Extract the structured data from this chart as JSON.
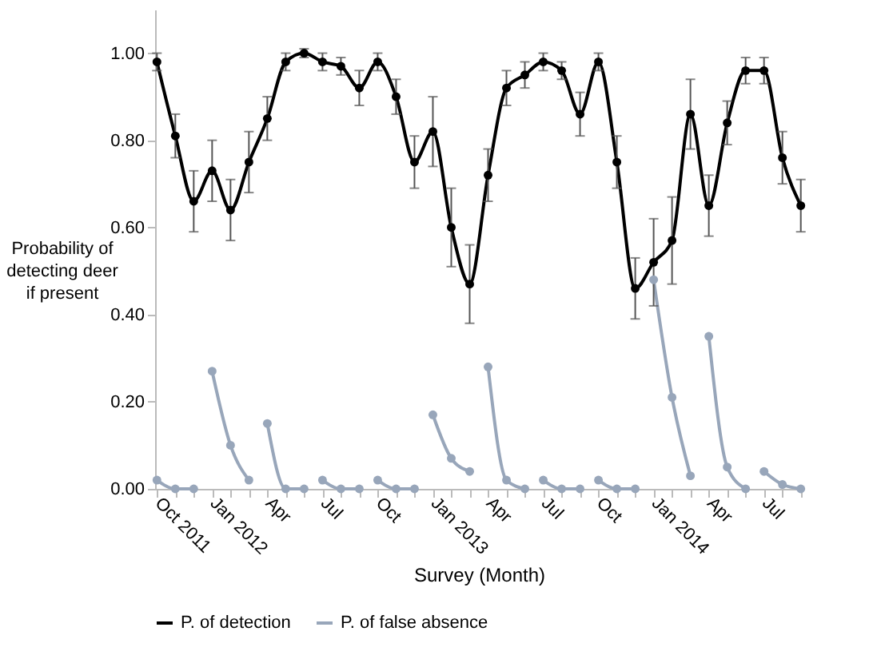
{
  "chart_data": {
    "type": "line",
    "xlabel": "Survey (Month)",
    "ylabel": "Probability of detecting deer if present",
    "categories": [
      "Oct 2011",
      null,
      null,
      "Jan 2012",
      null,
      null,
      "Apr",
      null,
      null,
      "Jul",
      null,
      null,
      "Oct",
      null,
      null,
      "Jan 2013",
      null,
      null,
      "Apr",
      null,
      null,
      "Jul",
      null,
      null,
      "Oct",
      null,
      null,
      "Jan 2014",
      null,
      null,
      "Apr",
      null,
      null,
      "Jul",
      null,
      null
    ],
    "ylim": [
      0,
      1.1
    ],
    "yticks": [
      {
        "value": 0,
        "label": "0.00"
      },
      {
        "value": 0.2,
        "label": "0.20"
      },
      {
        "value": 0.4,
        "label": "0.40"
      },
      {
        "value": 0.6,
        "label": "0.60"
      },
      {
        "value": 0.8,
        "label": "0.80"
      },
      {
        "value": 1,
        "label": "1.00"
      }
    ],
    "grid": false,
    "legend": "bottom",
    "marker": "circle",
    "line_style": "solid",
    "series": [
      {
        "name": "P. of detection",
        "color": "#000000",
        "values": [
          0.98,
          0.81,
          0.66,
          0.73,
          0.64,
          0.75,
          0.85,
          0.98,
          1.0,
          0.98,
          0.97,
          0.92,
          0.98,
          0.9,
          0.75,
          0.82,
          0.6,
          0.47,
          0.72,
          0.92,
          0.95,
          0.98,
          0.96,
          0.86,
          0.98,
          0.75,
          0.46,
          0.52,
          0.57,
          0.86,
          0.65,
          0.84,
          0.96,
          0.96,
          0.76,
          0.65
        ],
        "errors": [
          0.02,
          0.05,
          0.07,
          0.07,
          0.07,
          0.07,
          0.05,
          0.02,
          0.01,
          0.02,
          0.02,
          0.04,
          0.02,
          0.04,
          0.06,
          0.08,
          0.09,
          0.09,
          0.06,
          0.04,
          0.03,
          0.02,
          0.02,
          0.05,
          0.02,
          0.06,
          0.07,
          0.1,
          0.1,
          0.08,
          0.07,
          0.05,
          0.03,
          0.03,
          0.06,
          0.06
        ]
      },
      {
        "name": "P. of false absence",
        "color": "#98a6ba",
        "values": [
          0.02,
          0.0,
          0.0,
          null,
          null,
          null,
          null,
          null,
          null,
          null,
          null,
          null,
          null,
          null,
          null,
          null,
          null,
          null,
          null,
          null,
          null,
          null,
          null,
          null,
          null,
          null,
          null,
          null,
          null,
          null,
          null,
          null,
          null,
          null,
          null,
          null
        ]
      },
      {
        "color": "#98a6ba",
        "values": [
          null,
          null,
          null,
          0.27,
          0.1,
          0.02,
          null,
          null,
          null,
          null,
          null,
          null,
          null,
          null,
          null,
          null,
          null,
          null,
          null,
          null,
          null,
          null,
          null,
          null,
          null,
          null,
          null,
          null,
          null,
          null,
          null,
          null,
          null,
          null,
          null,
          null
        ]
      },
      {
        "color": "#98a6ba",
        "values": [
          null,
          null,
          null,
          null,
          null,
          null,
          0.15,
          0.0,
          0.0,
          null,
          null,
          null,
          null,
          null,
          null,
          null,
          null,
          null,
          null,
          null,
          null,
          null,
          null,
          null,
          null,
          null,
          null,
          null,
          null,
          null,
          null,
          null,
          null,
          null,
          null,
          null
        ]
      },
      {
        "color": "#98a6ba",
        "values": [
          null,
          null,
          null,
          null,
          null,
          null,
          null,
          null,
          null,
          0.02,
          0.0,
          0.0,
          null,
          null,
          null,
          null,
          null,
          null,
          null,
          null,
          null,
          null,
          null,
          null,
          null,
          null,
          null,
          null,
          null,
          null,
          null,
          null,
          null,
          null,
          null,
          null
        ]
      },
      {
        "color": "#98a6ba",
        "values": [
          null,
          null,
          null,
          null,
          null,
          null,
          null,
          null,
          null,
          null,
          null,
          null,
          0.02,
          0.0,
          0.0,
          null,
          null,
          null,
          null,
          null,
          null,
          null,
          null,
          null,
          null,
          null,
          null,
          null,
          null,
          null,
          null,
          null,
          null,
          null,
          null,
          null
        ]
      },
      {
        "color": "#98a6ba",
        "values": [
          null,
          null,
          null,
          null,
          null,
          null,
          null,
          null,
          null,
          null,
          null,
          null,
          null,
          null,
          null,
          0.17,
          0.07,
          0.04,
          null,
          null,
          null,
          null,
          null,
          null,
          null,
          null,
          null,
          null,
          null,
          null,
          null,
          null,
          null,
          null,
          null,
          null
        ]
      },
      {
        "color": "#98a6ba",
        "values": [
          null,
          null,
          null,
          null,
          null,
          null,
          null,
          null,
          null,
          null,
          null,
          null,
          null,
          null,
          null,
          null,
          null,
          null,
          0.28,
          0.02,
          0.0,
          null,
          null,
          null,
          null,
          null,
          null,
          null,
          null,
          null,
          null,
          null,
          null,
          null,
          null,
          null
        ]
      },
      {
        "color": "#98a6ba",
        "values": [
          null,
          null,
          null,
          null,
          null,
          null,
          null,
          null,
          null,
          null,
          null,
          null,
          null,
          null,
          null,
          null,
          null,
          null,
          null,
          null,
          null,
          0.02,
          0.0,
          0.0,
          null,
          null,
          null,
          null,
          null,
          null,
          null,
          null,
          null,
          null,
          null,
          null
        ]
      },
      {
        "color": "#98a6ba",
        "values": [
          null,
          null,
          null,
          null,
          null,
          null,
          null,
          null,
          null,
          null,
          null,
          null,
          null,
          null,
          null,
          null,
          null,
          null,
          null,
          null,
          null,
          null,
          null,
          null,
          0.02,
          0.0,
          0.0,
          null,
          null,
          null,
          null,
          null,
          null,
          null,
          null,
          null
        ]
      },
      {
        "color": "#98a6ba",
        "values": [
          null,
          null,
          null,
          null,
          null,
          null,
          null,
          null,
          null,
          null,
          null,
          null,
          null,
          null,
          null,
          null,
          null,
          null,
          null,
          null,
          null,
          null,
          null,
          null,
          null,
          null,
          null,
          0.48,
          0.21,
          0.03,
          null,
          null,
          null,
          null,
          null,
          null
        ]
      },
      {
        "color": "#98a6ba",
        "values": [
          null,
          null,
          null,
          null,
          null,
          null,
          null,
          null,
          null,
          null,
          null,
          null,
          null,
          null,
          null,
          null,
          null,
          null,
          null,
          null,
          null,
          null,
          null,
          null,
          null,
          null,
          null,
          null,
          null,
          null,
          0.35,
          0.05,
          0.0,
          null,
          null,
          null
        ]
      },
      {
        "color": "#98a6ba",
        "values": [
          null,
          null,
          null,
          null,
          null,
          null,
          null,
          null,
          null,
          null,
          null,
          null,
          null,
          null,
          null,
          null,
          null,
          null,
          null,
          null,
          null,
          null,
          null,
          null,
          null,
          null,
          null,
          null,
          null,
          null,
          null,
          null,
          null,
          0.04,
          0.01,
          0.0
        ]
      }
    ]
  }
}
